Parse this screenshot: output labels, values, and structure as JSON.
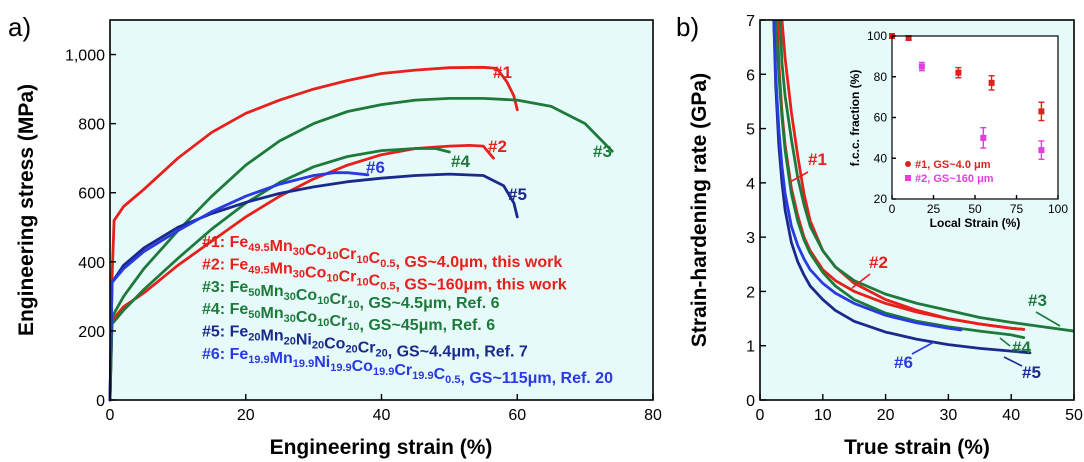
{
  "colors": {
    "c1": "#e8201c",
    "c2": "#e8201c",
    "c3": "#1e7a3a",
    "c4": "#1e7a3a",
    "c5": "#1a2a8c",
    "c6": "#2a3ae0",
    "inset1": "#e0201c",
    "inset2": "#e040e0",
    "plotBg": "#e6fafa"
  },
  "chart_data": [
    {
      "type": "line",
      "panel_label": "a)",
      "xlabel": "Engineering strain (%)",
      "ylabel": "Engineering stress (MPa)",
      "xlim": [
        0,
        80
      ],
      "ylim": [
        0,
        1100
      ],
      "x_ticks": [
        "0",
        "20",
        "40",
        "60",
        "80"
      ],
      "y_ticks": [
        "0",
        "200",
        "400",
        "600",
        "800",
        "1,000"
      ],
      "x_tick_values": [
        0,
        20,
        40,
        60,
        80
      ],
      "y_tick_values": [
        0,
        200,
        400,
        600,
        800,
        1000
      ],
      "series": [
        {
          "name": "#1",
          "color": "#e8201c",
          "x": [
            0,
            0.3,
            0.6,
            2,
            5,
            10,
            15,
            20,
            25,
            30,
            35,
            40,
            45,
            50,
            55,
            57,
            58.5,
            59.5,
            60
          ],
          "y": [
            0,
            350,
            520,
            560,
            610,
            700,
            775,
            830,
            868,
            900,
            925,
            945,
            955,
            962,
            963,
            960,
            920,
            880,
            840
          ]
        },
        {
          "name": "#2",
          "color": "#e8201c",
          "x": [
            0,
            0.3,
            2,
            5,
            10,
            15,
            20,
            25,
            30,
            35,
            40,
            45,
            50,
            53,
            55,
            56.5
          ],
          "y": [
            0,
            230,
            270,
            310,
            390,
            460,
            530,
            590,
            640,
            680,
            710,
            728,
            735,
            737,
            735,
            700
          ]
        },
        {
          "name": "#3",
          "color": "#1e7a3a",
          "x": [
            0,
            0.3,
            2,
            5,
            10,
            15,
            20,
            25,
            30,
            35,
            40,
            45,
            50,
            55,
            60,
            65,
            70,
            72,
            74
          ],
          "y": [
            0,
            240,
            300,
            380,
            490,
            590,
            680,
            750,
            800,
            835,
            855,
            868,
            873,
            873,
            868,
            850,
            800,
            760,
            720
          ]
        },
        {
          "name": "#4",
          "color": "#1e7a3a",
          "x": [
            0,
            0.3,
            2,
            5,
            10,
            15,
            20,
            25,
            30,
            35,
            40,
            45,
            48,
            50
          ],
          "y": [
            0,
            220,
            260,
            320,
            410,
            495,
            570,
            630,
            675,
            705,
            722,
            728,
            728,
            718
          ]
        },
        {
          "name": "#5",
          "color": "#1a2a8c",
          "x": [
            0,
            0.3,
            2,
            5,
            10,
            15,
            20,
            25,
            30,
            35,
            40,
            45,
            50,
            55,
            58,
            59.5,
            60
          ],
          "y": [
            0,
            340,
            390,
            440,
            500,
            540,
            572,
            598,
            617,
            632,
            642,
            650,
            654,
            650,
            620,
            570,
            530
          ]
        },
        {
          "name": "#6",
          "color": "#2a3ae0",
          "x": [
            0,
            0.3,
            2,
            5,
            10,
            15,
            20,
            25,
            30,
            33,
            35,
            38
          ],
          "y": [
            0,
            340,
            380,
            430,
            490,
            545,
            590,
            625,
            650,
            658,
            658,
            652
          ]
        }
      ],
      "curve_labels": [
        "#1",
        "#2",
        "#3",
        "#4",
        "#5",
        "#6"
      ],
      "legend": [
        {
          "id": "#1:",
          "parts": [
            [
              "Fe",
              "49.5"
            ],
            [
              "Mn",
              "30"
            ],
            [
              "Co",
              "10"
            ],
            [
              "Cr",
              "10"
            ],
            [
              "C",
              "0.5"
            ]
          ],
          "tail": ", GS~4.0μm, this work",
          "color": "#e8201c"
        },
        {
          "id": "#2:",
          "parts": [
            [
              "Fe",
              "49.5"
            ],
            [
              "Mn",
              "30"
            ],
            [
              "Co",
              "10"
            ],
            [
              "Cr",
              "10"
            ],
            [
              "C",
              "0.5"
            ]
          ],
          "tail": ", GS~160μm, this work",
          "color": "#e8201c"
        },
        {
          "id": "#3:",
          "parts": [
            [
              "Fe",
              "50"
            ],
            [
              "Mn",
              "30"
            ],
            [
              "Co",
              "10"
            ],
            [
              "Cr",
              "10"
            ]
          ],
          "tail": ", GS~4.5μm, Ref. 6",
          "color": "#1e7a3a"
        },
        {
          "id": "#4:",
          "parts": [
            [
              "Fe",
              "50"
            ],
            [
              "Mn",
              "30"
            ],
            [
              "Co",
              "10"
            ],
            [
              "Cr",
              "10"
            ]
          ],
          "tail": ", GS~45μm, Ref. 6",
          "color": "#1e7a3a"
        },
        {
          "id": "#5:",
          "parts": [
            [
              "Fe",
              "20"
            ],
            [
              "Mn",
              "20"
            ],
            [
              "Ni",
              "20"
            ],
            [
              "Co",
              "20"
            ],
            [
              "Cr",
              "20"
            ]
          ],
          "tail": ", GS~4.4μm, Ref. 7",
          "color": "#1a2a8c"
        },
        {
          "id": "#6:",
          "parts": [
            [
              "Fe",
              "19.9"
            ],
            [
              "Mn",
              "19.9"
            ],
            [
              "Ni",
              "19.9"
            ],
            [
              "Co",
              "19.9"
            ],
            [
              "Cr",
              "19.9"
            ],
            [
              "C",
              "0.5"
            ]
          ],
          "tail": ", GS~115μm, Ref. 20",
          "color": "#2a3ae0"
        }
      ]
    },
    {
      "type": "line",
      "panel_label": "b)",
      "xlabel": "True strain (%)",
      "ylabel": "Strain-hardening rate (GPa)",
      "xlim": [
        0,
        50
      ],
      "ylim": [
        0,
        7
      ],
      "x_ticks": [
        "0",
        "10",
        "20",
        "30",
        "40",
        "50"
      ],
      "y_ticks": [
        "0",
        "1",
        "2",
        "3",
        "4",
        "5",
        "6",
        "7"
      ],
      "x_tick_values": [
        0,
        10,
        20,
        30,
        40,
        50
      ],
      "y_tick_values": [
        0,
        1,
        2,
        3,
        4,
        5,
        6,
        7
      ],
      "series": [
        {
          "name": "#1",
          "color": "#e8201c",
          "x": [
            3.5,
            4,
            5,
            6,
            7,
            8,
            10,
            12,
            15,
            20,
            25,
            30,
            35,
            40,
            42
          ],
          "y": [
            7,
            6.3,
            5.3,
            4.5,
            3.8,
            3.3,
            2.75,
            2.45,
            2.15,
            1.85,
            1.65,
            1.5,
            1.4,
            1.32,
            1.3
          ]
        },
        {
          "name": "#2",
          "color": "#e8201c",
          "x": [
            2.8,
            3,
            3.5,
            4,
            5,
            6,
            7,
            8,
            10,
            12,
            15,
            20,
            25,
            30,
            35,
            40,
            42
          ],
          "y": [
            7,
            6.2,
            5.3,
            4.7,
            3.9,
            3.4,
            3.0,
            2.75,
            2.4,
            2.2,
            2.0,
            1.78,
            1.62,
            1.5,
            1.4,
            1.32,
            1.3
          ]
        },
        {
          "name": "#3",
          "color": "#1e7a3a",
          "x": [
            3.2,
            3.5,
            4,
            5,
            6,
            7,
            8,
            10,
            12,
            15,
            20,
            25,
            30,
            35,
            40,
            45,
            50
          ],
          "y": [
            7,
            6.2,
            5.6,
            4.8,
            4.1,
            3.6,
            3.2,
            2.75,
            2.45,
            2.2,
            1.95,
            1.78,
            1.65,
            1.52,
            1.43,
            1.35,
            1.27
          ]
        },
        {
          "name": "#4",
          "color": "#1e7a3a",
          "x": [
            2.5,
            3,
            3.5,
            4,
            5,
            6,
            7,
            8,
            10,
            12,
            15,
            20,
            25,
            30,
            35,
            40,
            42
          ],
          "y": [
            7,
            6,
            5.2,
            4.6,
            3.8,
            3.3,
            2.95,
            2.7,
            2.35,
            2.1,
            1.85,
            1.6,
            1.45,
            1.35,
            1.27,
            1.2,
            1.15
          ]
        },
        {
          "name": "#5",
          "color": "#1a2a8c",
          "x": [
            2.2,
            2.5,
            3,
            3.5,
            4,
            5,
            6,
            7,
            8,
            10,
            12,
            15,
            20,
            25,
            30,
            35,
            40,
            43
          ],
          "y": [
            7,
            5.8,
            4.7,
            4.0,
            3.5,
            2.9,
            2.55,
            2.3,
            2.1,
            1.85,
            1.65,
            1.45,
            1.25,
            1.12,
            1.02,
            0.95,
            0.9,
            0.87
          ]
        },
        {
          "name": "#6",
          "color": "#2a3ae0",
          "x": [
            2.2,
            2.5,
            3,
            3.5,
            4,
            5,
            6,
            7,
            8,
            10,
            12,
            15,
            20,
            25,
            30,
            32
          ],
          "y": [
            7,
            6.0,
            5.0,
            4.3,
            3.8,
            3.2,
            2.85,
            2.6,
            2.4,
            2.15,
            1.97,
            1.78,
            1.56,
            1.42,
            1.32,
            1.29
          ]
        }
      ],
      "curve_labels": [
        "#1",
        "#2",
        "#3",
        "#4",
        "#5",
        "#6"
      ],
      "inset": {
        "type": "scatter",
        "xlabel": "Local Strain (%)",
        "ylabel": "f.c.c. fraction (%)",
        "xlim": [
          0,
          100
        ],
        "ylim": [
          20,
          100
        ],
        "x_ticks": [
          "0",
          "25",
          "50",
          "75",
          "100"
        ],
        "y_ticks": [
          "20",
          "40",
          "60",
          "80",
          "100"
        ],
        "x_tick_values": [
          0,
          25,
          50,
          75,
          100
        ],
        "y_tick_values": [
          20,
          40,
          60,
          80,
          100
        ],
        "series": [
          {
            "name": "#1, GS~4.0 μm",
            "color": "#e0201c",
            "x": [
              0,
              10,
              40,
              60,
              90
            ],
            "y": [
              100,
              99,
              82,
              77,
              63
            ],
            "err": [
              0.8,
              0.8,
              2.5,
              3.5,
              4.5
            ]
          },
          {
            "name": "#2, GS~160 μm",
            "color": "#e040e0",
            "x": [
              18,
              55,
              90
            ],
            "y": [
              85,
              50,
              44
            ],
            "err": [
              2.0,
              5.0,
              4.5
            ]
          }
        ]
      }
    }
  ]
}
